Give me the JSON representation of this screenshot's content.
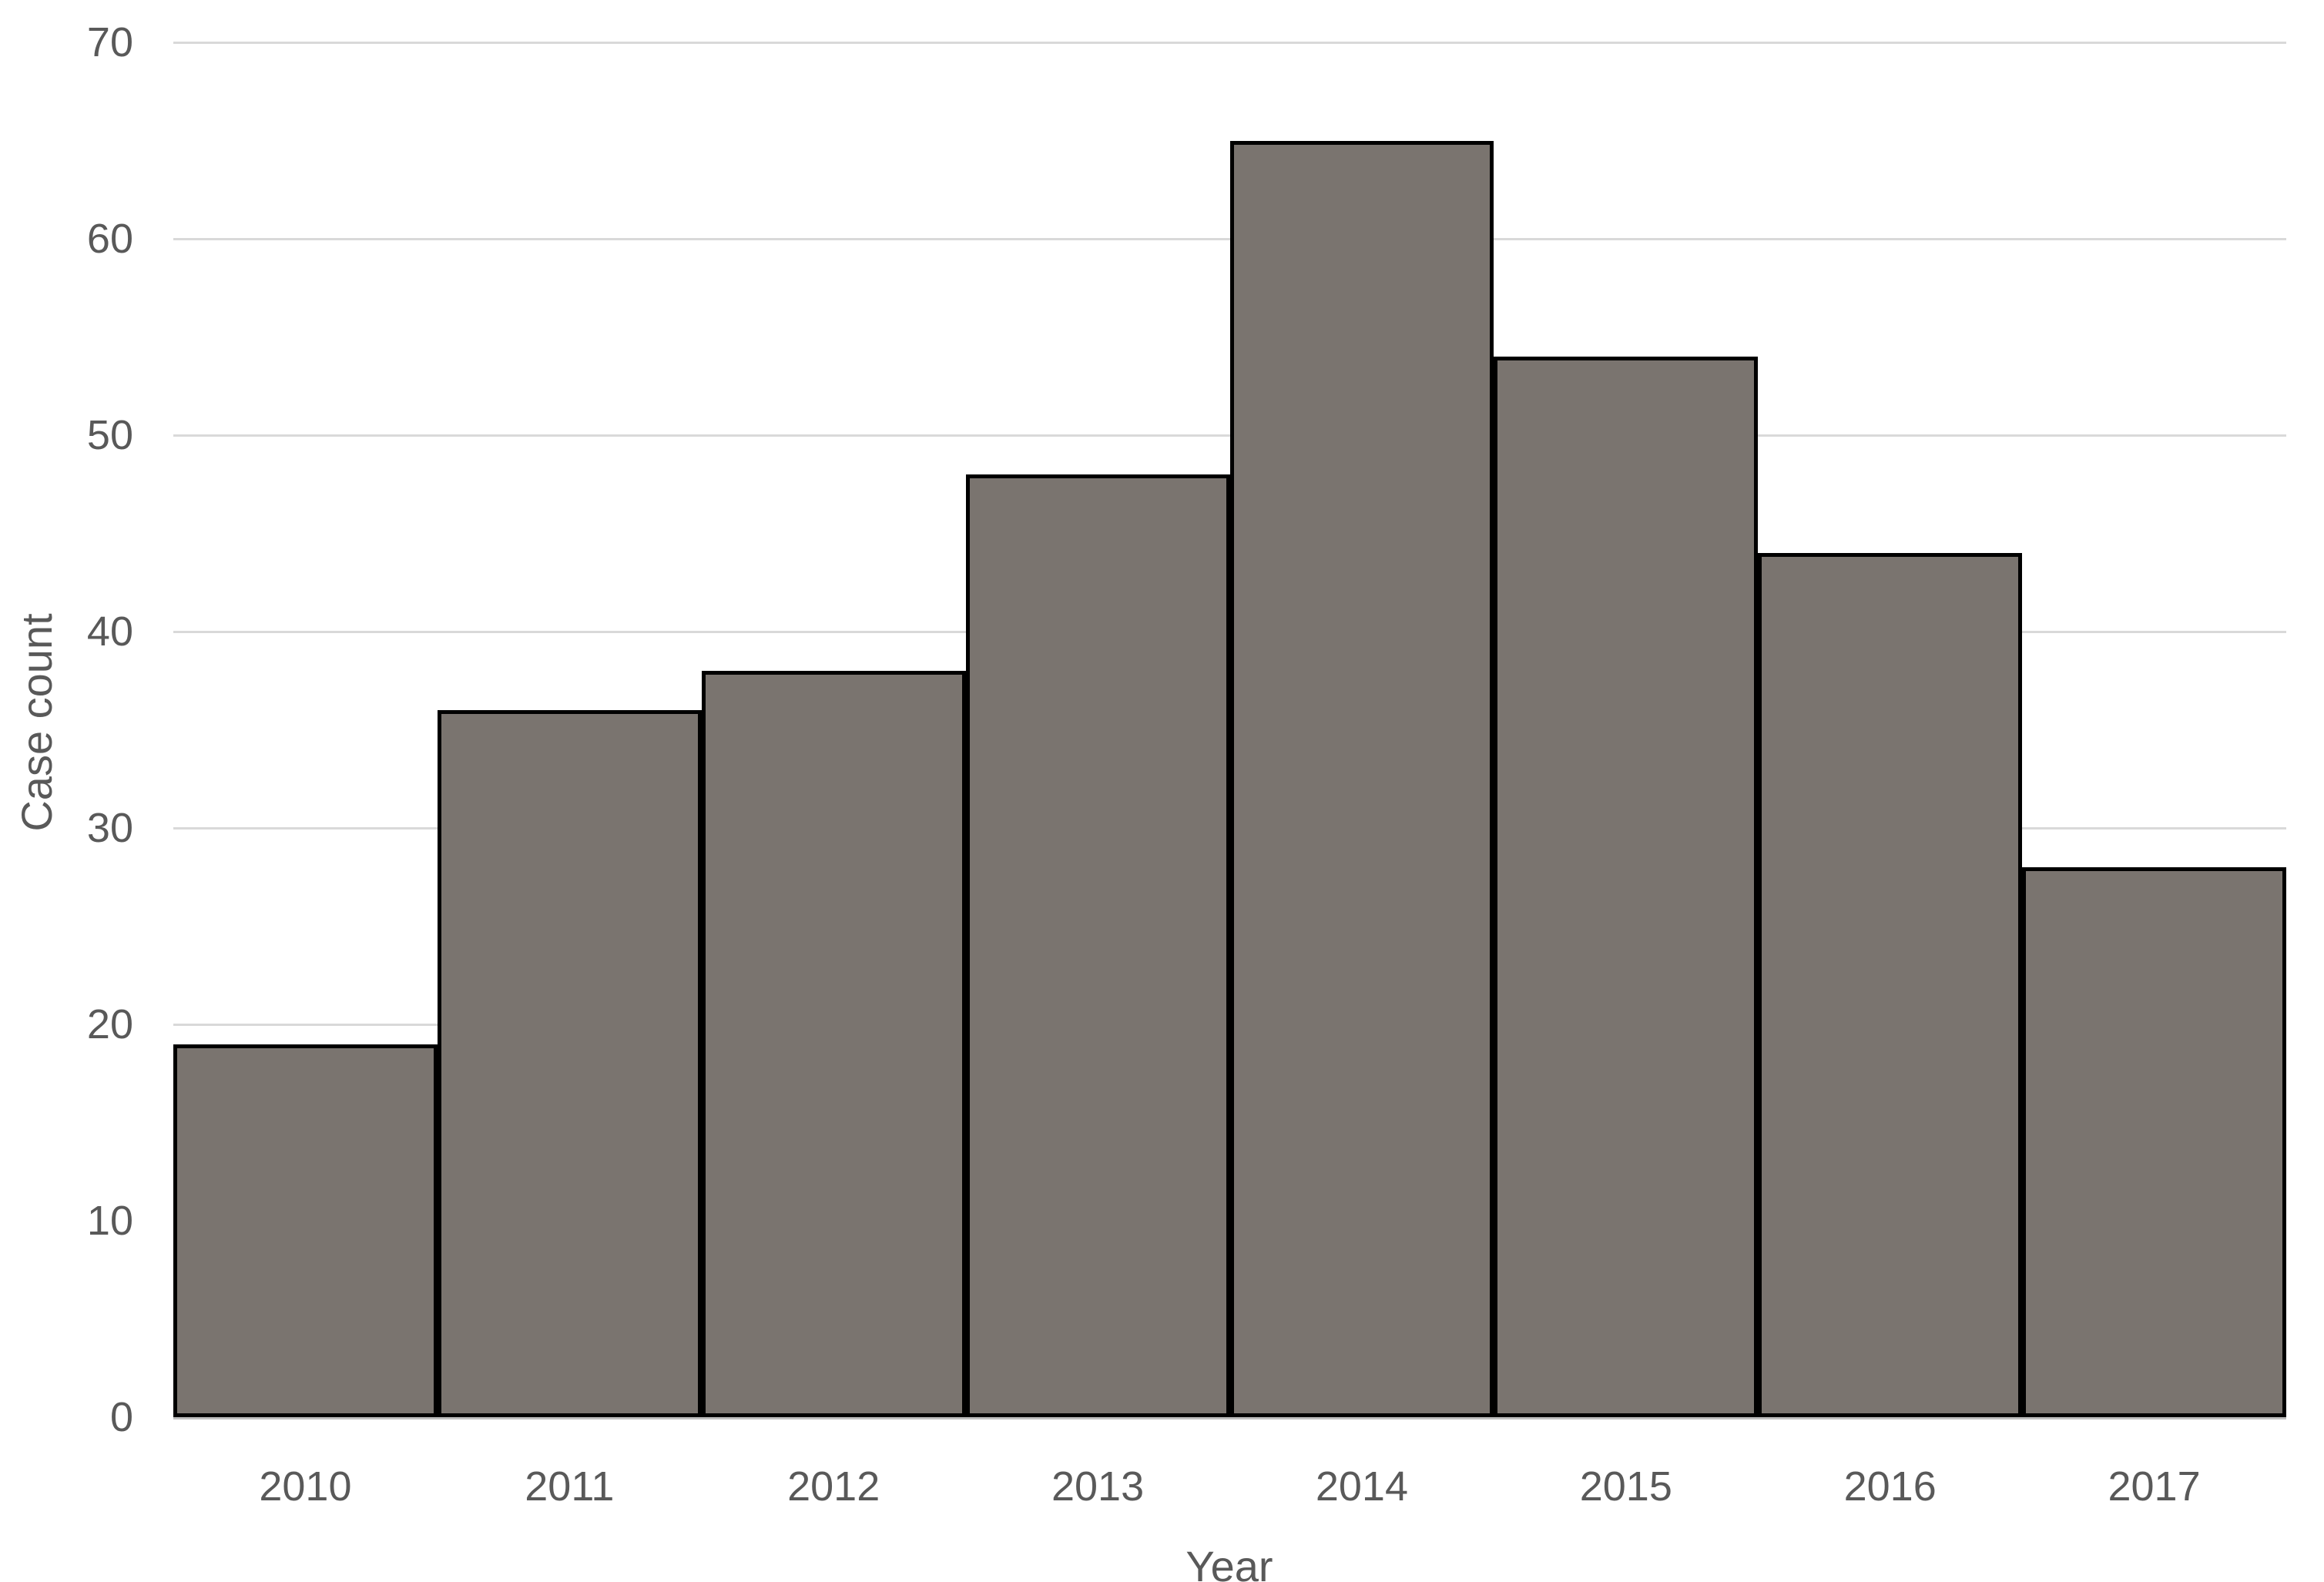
{
  "chart_data": {
    "type": "bar",
    "subtype": "histogram-zero-gap",
    "title": "",
    "categories": [
      "2010",
      "2011",
      "2012",
      "2013",
      "2014",
      "2015",
      "2016",
      "2017"
    ],
    "values": [
      19,
      36,
      38,
      48,
      65,
      54,
      44,
      28
    ],
    "series": [
      {
        "name": "Case count",
        "values": [
          19,
          36,
          38,
          48,
          65,
          54,
          44,
          28
        ]
      }
    ],
    "xlabel": "Year",
    "ylabel": "Case count",
    "ylim": [
      0,
      70
    ],
    "yticks": [
      0,
      10,
      20,
      30,
      40,
      50,
      60,
      70
    ],
    "ytick_labels": [
      "0",
      "10",
      "20",
      "30",
      "40",
      "50",
      "60",
      "70"
    ],
    "grid": "horizontal",
    "legend_position": "none",
    "bar_gap": 0,
    "colors": {
      "bar_fill": "#7A746F",
      "bar_border": "#000000",
      "gridline": "#D9D9D9",
      "axis_line": "#BFBFBF",
      "tick_text": "#595959",
      "axis_title_text": "#595959",
      "background": "#FFFFFF"
    }
  }
}
